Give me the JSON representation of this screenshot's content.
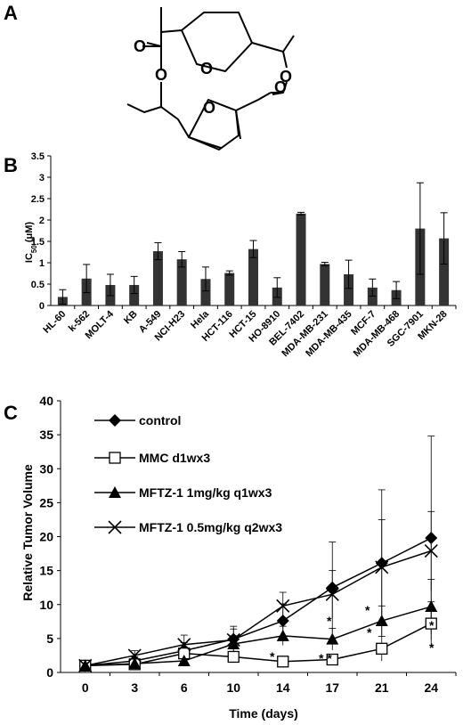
{
  "panels": {
    "a_label": "A",
    "b_label": "B",
    "c_label": "C"
  },
  "chart_data": [
    {
      "type": "bar",
      "ylabel_main": "IC",
      "ylabel_sub": "50",
      "ylabel_unit": " (μM)",
      "ylim": [
        0,
        3.5
      ],
      "yticks": [
        "0",
        "0.5",
        "1",
        "1.5",
        "2",
        "2.5",
        "3",
        "3.5"
      ],
      "categories": [
        "HL-60",
        "k-562",
        "MOLT-4",
        "KB",
        "A-549",
        "NCI-H23",
        "Hela",
        "HCT-116",
        "HCT-15",
        "HO-8910",
        "BEL-7402",
        "MDA-MB-231",
        "MDA-MB-435",
        "MCF-7",
        "MDA-MB-468",
        "SGC-7901",
        "MKN-28"
      ],
      "values": [
        0.2,
        0.63,
        0.48,
        0.48,
        1.27,
        1.08,
        0.62,
        0.76,
        1.32,
        0.42,
        2.15,
        0.97,
        0.73,
        0.42,
        0.36,
        1.8,
        1.57
      ],
      "errors": [
        0.17,
        0.33,
        0.25,
        0.2,
        0.2,
        0.18,
        0.28,
        0.05,
        0.2,
        0.23,
        0.03,
        0.04,
        0.33,
        0.2,
        0.2,
        1.07,
        0.6
      ],
      "bar_color": "#333333"
    },
    {
      "type": "line",
      "xlabel": "Time (days)",
      "ylabel": "Relative Tumor Volume",
      "x": [
        0,
        3,
        6,
        10,
        14,
        17,
        21,
        24
      ],
      "xticks": [
        "0",
        "3",
        "6",
        "10",
        "14",
        "17",
        "21",
        "24"
      ],
      "ylim": [
        0,
        40
      ],
      "yticks": [
        "0",
        "5",
        "10",
        "15",
        "20",
        "25",
        "30",
        "35",
        "40"
      ],
      "series": [
        {
          "name": "control",
          "marker": "diamond",
          "values": [
            1,
            1.7,
            3.2,
            4.9,
            7.6,
            12.5,
            16.1,
            19.8
          ],
          "err_up": [
            0.4,
            0.6,
            1.2,
            1.5,
            2.5,
            6.7,
            10.8,
            15.0
          ]
        },
        {
          "name": "MMC d1wx3",
          "marker": "square",
          "values": [
            1,
            1.2,
            2.8,
            2.3,
            1.6,
            1.9,
            3.5,
            7.2
          ],
          "err_up": [
            0.3,
            0.4,
            0.9,
            0.8,
            0.5,
            0.7,
            1.8,
            3.2
          ]
        },
        {
          "name": "MFTZ-1 1mg/kg q1wx3",
          "marker": "triangle",
          "values": [
            1,
            1.3,
            1.7,
            4.2,
            5.4,
            4.9,
            7.6,
            9.7
          ],
          "err_up": [
            0.3,
            0.5,
            0.8,
            1.2,
            1.4,
            1.6,
            2.2,
            4.0
          ]
        },
        {
          "name": "MFTZ-1 0.5mg/kg q2wx3",
          "marker": "x",
          "values": [
            1,
            2.5,
            4.1,
            4.8,
            9.8,
            11.5,
            15.5,
            17.9
          ],
          "err_up": [
            0.4,
            0.7,
            1.4,
            2.0,
            2.0,
            3.5,
            7.0,
            5.8
          ]
        }
      ],
      "annotations": [
        "*",
        "* *",
        "*",
        "*",
        "*",
        "*",
        "*"
      ]
    }
  ]
}
